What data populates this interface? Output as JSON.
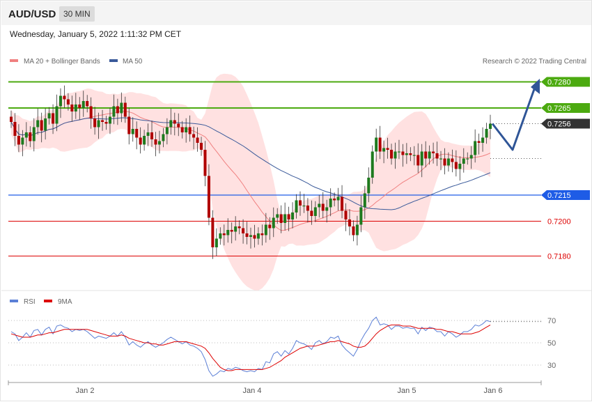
{
  "header": {
    "pair": "AUD/USD",
    "timeframe": "30 MIN"
  },
  "datetime": "Wednesday, January 5, 2022 1:11:32 PM CET",
  "copyright": "Research © 2022 Trading Central",
  "legend": {
    "ma20_bb": {
      "label": "MA 20 + Bollinger Bands",
      "color": "#f08080"
    },
    "ma50": {
      "label": "MA 50",
      "color": "#3a5a9a"
    },
    "rsi": {
      "label": "RSI",
      "color": "#5b7fd6"
    },
    "ma9": {
      "label": "9MA",
      "color": "#dd0000"
    }
  },
  "levels": [
    {
      "label": "0.7280",
      "value": 0.728,
      "kind": "resistance",
      "color": "#4caa10"
    },
    {
      "label": "0.7265",
      "value": 0.7265,
      "kind": "resistance",
      "color": "#4caa10"
    },
    {
      "label": "0.7256",
      "value": 0.7256,
      "kind": "current",
      "color": "#333333"
    },
    {
      "label": "0.7215",
      "value": 0.7215,
      "kind": "pivot",
      "color": "#1e5ce6"
    },
    {
      "label": "0.7200",
      "value": 0.72,
      "kind": "support",
      "color": "#dd0000"
    },
    {
      "label": "0.7180",
      "value": 0.718,
      "kind": "support",
      "color": "#dd0000"
    }
  ],
  "chart_data": [
    {
      "type": "candlestick",
      "x_ticks": [
        "Jan 2",
        "Jan 4",
        "Jan 5",
        "Jan 6"
      ],
      "ylim": [
        0.7163,
        0.7298
      ],
      "series": [
        {
          "closes": [
            0.7257,
            0.7249,
            0.7244,
            0.7248,
            0.7251,
            0.7246,
            0.7254,
            0.7258,
            0.7252,
            0.7259,
            0.7262,
            0.7256,
            0.7266,
            0.7272,
            0.727,
            0.7267,
            0.7263,
            0.7267,
            0.7265,
            0.7269,
            0.7266,
            0.7259,
            0.7254,
            0.7258,
            0.7257,
            0.7256,
            0.726,
            0.7266,
            0.7262,
            0.7268,
            0.726,
            0.725,
            0.7253,
            0.7248,
            0.7244,
            0.7249,
            0.7251,
            0.7247,
            0.7244,
            0.7246,
            0.725,
            0.7254,
            0.7258,
            0.7256,
            0.7254,
            0.7251,
            0.7254,
            0.725,
            0.7248,
            0.7245,
            0.7241,
            0.7226,
            0.7202,
            0.7185,
            0.719,
            0.7193,
            0.7192,
            0.7195,
            0.7194,
            0.7197,
            0.7196,
            0.7193,
            0.7191,
            0.7192,
            0.719,
            0.7193,
            0.7192,
            0.7198,
            0.7196,
            0.7202,
            0.7204,
            0.7199,
            0.7204,
            0.7201,
            0.7205,
            0.7212,
            0.7209,
            0.7209,
            0.7206,
            0.7203,
            0.7208,
            0.721,
            0.7206,
            0.7208,
            0.7213,
            0.7212,
            0.7214,
            0.7206,
            0.7201,
            0.7197,
            0.7192,
            0.7198,
            0.7208,
            0.7216,
            0.7225,
            0.724,
            0.7248,
            0.724,
            0.7242,
            0.7241,
            0.7236,
            0.724,
            0.724,
            0.7238,
            0.7239,
            0.7238,
            0.7238,
            0.7232,
            0.724,
            0.7236,
            0.724,
            0.7239,
            0.7236,
            0.7236,
            0.7232,
            0.7236,
            0.7234,
            0.723,
            0.7233,
            0.7236,
            0.7236,
            0.7238,
            0.7246,
            0.7245,
            0.7248,
            0.7253,
            0.7256
          ]
        }
      ]
    },
    {
      "type": "line",
      "title": "RSI",
      "y_ticks": [
        30,
        50,
        70
      ],
      "ylim": [
        10,
        78
      ],
      "series": [
        {
          "name": "RSI",
          "values": [
            60,
            58,
            52,
            55,
            59,
            55,
            61,
            62,
            57,
            62,
            64,
            58,
            65,
            66,
            64,
            63,
            60,
            62,
            61,
            62,
            60,
            57,
            54,
            56,
            55,
            54,
            56,
            59,
            56,
            60,
            55,
            48,
            51,
            48,
            46,
            49,
            51,
            48,
            46,
            48,
            50,
            53,
            55,
            53,
            51,
            49,
            51,
            48,
            47,
            45,
            42,
            35,
            25,
            20,
            22,
            25,
            24,
            27,
            26,
            28,
            27,
            25,
            24,
            25,
            24,
            27,
            26,
            33,
            32,
            40,
            42,
            38,
            43,
            40,
            45,
            52,
            50,
            49,
            47,
            44,
            50,
            52,
            49,
            51,
            55,
            54,
            56,
            48,
            44,
            41,
            38,
            44,
            52,
            58,
            63,
            70,
            73,
            66,
            67,
            66,
            62,
            65,
            65,
            63,
            64,
            63,
            63,
            58,
            64,
            61,
            64,
            63,
            60,
            60,
            56,
            60,
            58,
            55,
            57,
            60,
            60,
            62,
            66,
            65,
            67,
            70,
            69
          ]
        },
        {
          "name": "9MA",
          "values": [
            58,
            57,
            56,
            55,
            55,
            55,
            56,
            57,
            57,
            58,
            59,
            59,
            60,
            61,
            62,
            62,
            62,
            62,
            62,
            62,
            62,
            61,
            60,
            59,
            58,
            57,
            56,
            56,
            56,
            57,
            56,
            54,
            53,
            52,
            51,
            50,
            50,
            49,
            49,
            48,
            48,
            49,
            50,
            51,
            51,
            51,
            51,
            50,
            49,
            48,
            47,
            45,
            41,
            36,
            32,
            28,
            26,
            25,
            25,
            26,
            26,
            26,
            26,
            26,
            26,
            26,
            26,
            27,
            28,
            30,
            32,
            34,
            37,
            39,
            41,
            43,
            45,
            46,
            47,
            47,
            47,
            48,
            49,
            50,
            51,
            51,
            52,
            51,
            50,
            49,
            47,
            46,
            46,
            47,
            50,
            54,
            58,
            61,
            63,
            65,
            66,
            66,
            66,
            65,
            65,
            65,
            64,
            63,
            63,
            63,
            63,
            63,
            62,
            62,
            61,
            60,
            60,
            59,
            58,
            58,
            58,
            58,
            59,
            60,
            62,
            64,
            66
          ]
        }
      ]
    }
  ]
}
